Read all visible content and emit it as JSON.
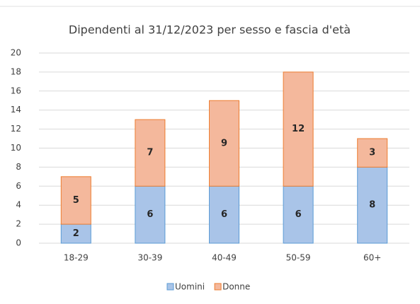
{
  "chart_data": {
    "type": "stacked_bar",
    "title": "Dipendenti al 31/12/2023 per sesso e fascia d'età",
    "categories": [
      "18-29",
      "30-39",
      "40-49",
      "50-59",
      "60+"
    ],
    "series": [
      {
        "name": "Uomini",
        "color": "#a9c4e8",
        "edge": "#5b9bd5",
        "values": [
          2,
          6,
          6,
          6,
          8
        ]
      },
      {
        "name": "Donne",
        "color": "#f4b89c",
        "edge": "#ed7d31",
        "values": [
          5,
          7,
          9,
          12,
          3
        ]
      }
    ],
    "ylim": [
      0,
      20
    ],
    "yticks": [
      0,
      2,
      4,
      6,
      8,
      10,
      12,
      14,
      16,
      18,
      20
    ],
    "grid": true,
    "legend": "bottom"
  }
}
